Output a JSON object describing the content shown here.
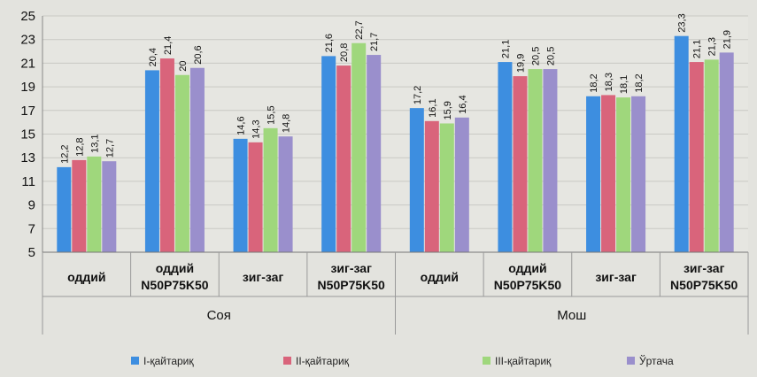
{
  "chart_data": {
    "type": "bar",
    "ylim": [
      5,
      25
    ],
    "yticks": [
      5,
      7,
      9,
      11,
      13,
      15,
      17,
      19,
      21,
      23,
      25
    ],
    "grid": true,
    "legend_position": "bottom",
    "categories": [
      {
        "line1": "оддий",
        "line2": ""
      },
      {
        "line1": "оддий",
        "line2": "N50P75K50"
      },
      {
        "line1": "зиг-заг",
        "line2": ""
      },
      {
        "line1": "зиг-заг",
        "line2": "N50P75K50"
      },
      {
        "line1": "оддий",
        "line2": ""
      },
      {
        "line1": "оддий",
        "line2": "N50P75K50"
      },
      {
        "line1": "зиг-заг",
        "line2": ""
      },
      {
        "line1": "зиг-заг",
        "line2": "N50P75K50"
      }
    ],
    "groups": [
      "Соя",
      "Мош"
    ],
    "series": [
      {
        "name": "I-қайтариқ",
        "color": "#3d8ee0",
        "values": [
          12.2,
          20.4,
          14.6,
          21.6,
          17.2,
          21.1,
          18.2,
          23.3
        ],
        "labels": [
          "12,2",
          "20,4",
          "14,6",
          "21,6",
          "17,2",
          "21,1",
          "18,2",
          "23,3"
        ]
      },
      {
        "name": "II-қайтариқ",
        "color": "#d9647b",
        "values": [
          12.8,
          21.4,
          14.3,
          20.8,
          16.1,
          19.9,
          18.3,
          21.1
        ],
        "labels": [
          "12,8",
          "21,4",
          "14,3",
          "20,8",
          "16,1",
          "19,9",
          "18,3",
          "21,1"
        ]
      },
      {
        "name": "III-қайтариқ",
        "color": "#9fd77c",
        "values": [
          13.1,
          20.0,
          15.5,
          22.7,
          15.9,
          20.5,
          18.1,
          21.3
        ],
        "labels": [
          "13,1",
          "20",
          "15,5",
          "22,7",
          "15,9",
          "20,5",
          "18,1",
          "21,3"
        ]
      },
      {
        "name": "Ўртача",
        "color": "#9a8fcc",
        "values": [
          12.7,
          20.6,
          14.8,
          21.7,
          16.4,
          20.5,
          18.2,
          21.9
        ],
        "labels": [
          "12,7",
          "20,6",
          "14,8",
          "21,7",
          "16,4",
          "20,5",
          "18,2",
          "21,9"
        ]
      }
    ]
  }
}
